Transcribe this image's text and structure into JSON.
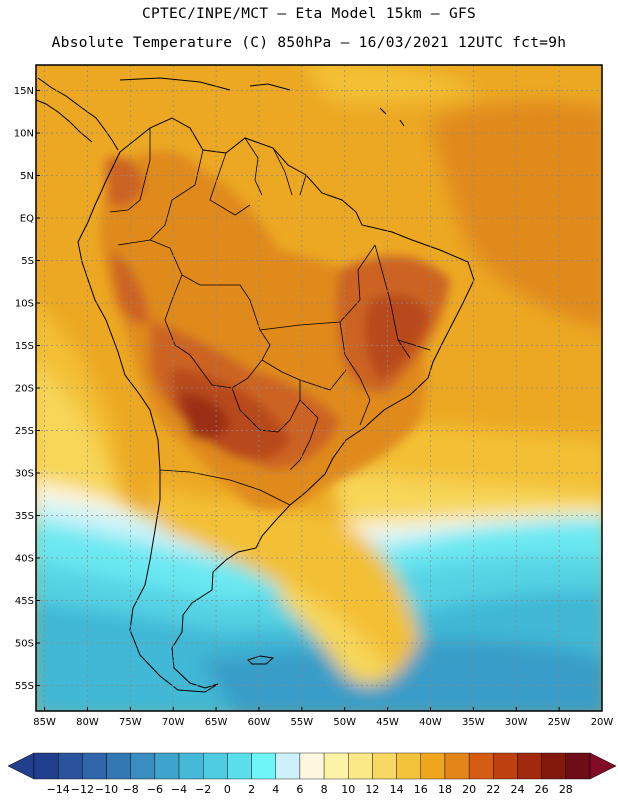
{
  "header": {
    "line1": "CPTEC/INPE/MCT –  Eta Model 15km – GFS",
    "line2": "Absolute Temperature (C) 850hPa – 16/03/2021 12UTC fct=9h"
  },
  "map": {
    "lat_labels": [
      "15N",
      "10N",
      "5N",
      "EQ",
      "5S",
      "10S",
      "15S",
      "20S",
      "25S",
      "30S",
      "35S",
      "40S",
      "45S",
      "50S",
      "55S"
    ],
    "lat_values": [
      15,
      10,
      5,
      0,
      -5,
      -10,
      -15,
      -20,
      -25,
      -30,
      -35,
      -40,
      -45,
      -50,
      -55
    ],
    "lon_labels": [
      "85W",
      "80W",
      "75W",
      "70W",
      "65W",
      "60W",
      "55W",
      "50W",
      "45W",
      "40W",
      "35W",
      "30W",
      "25W",
      "20W"
    ],
    "lon_values": [
      -85,
      -80,
      -75,
      -70,
      -65,
      -60,
      -55,
      -50,
      -45,
      -40,
      -35,
      -30,
      -25,
      -20
    ],
    "lat_range": [
      -58,
      18
    ],
    "lon_range": [
      -86,
      -20
    ],
    "temperature_bands": [
      {
        "temp": 28,
        "color": "#7a1c16"
      },
      {
        "temp": 26,
        "color": "#9c2d18"
      },
      {
        "temp": 24,
        "color": "#b8481c"
      },
      {
        "temp": 22,
        "color": "#cc6320"
      },
      {
        "temp": 20,
        "color": "#e08a1f"
      },
      {
        "temp": 18,
        "color": "#eca823"
      },
      {
        "temp": 16,
        "color": "#f3c035"
      },
      {
        "temp": 12,
        "color": "#f7d658"
      },
      {
        "temp": 8,
        "color": "#fbef9c"
      },
      {
        "temp": 6,
        "color": "#fdf6de"
      },
      {
        "temp": 4,
        "color": "#c9f3fa"
      },
      {
        "temp": 2,
        "color": "#6ae8f2"
      },
      {
        "temp": 0,
        "color": "#55d3e4"
      },
      {
        "temp": -2,
        "color": "#3fb8d6"
      },
      {
        "temp": -4,
        "color": "#389dc8"
      },
      {
        "temp": -6,
        "color": "#2f7fb5"
      }
    ]
  },
  "colorbar": {
    "labels": [
      "-14",
      "-12",
      "-10",
      "-8",
      "-6",
      "-4",
      "-2",
      "0",
      "2",
      "4",
      "6",
      "8",
      "10",
      "12",
      "14",
      "16",
      "18",
      "20",
      "22",
      "24",
      "26",
      "28"
    ],
    "colors": [
      "#213f8c",
      "#2b529c",
      "#2f65a9",
      "#3378b3",
      "#3a8dbf",
      "#3ea4cc",
      "#47b9d8",
      "#50cce2",
      "#5bdfec",
      "#6ff5f8",
      "#cbf2fb",
      "#fef6de",
      "#fdf3a6",
      "#fbe886",
      "#f8d862",
      "#f3c33a",
      "#eda61e",
      "#e38518",
      "#d45d12",
      "#bf410f",
      "#a3290e",
      "#83190d",
      "#6e0d17"
    ],
    "low_arrow_color": "#213f8c",
    "high_arrow_color": "#820b27"
  }
}
